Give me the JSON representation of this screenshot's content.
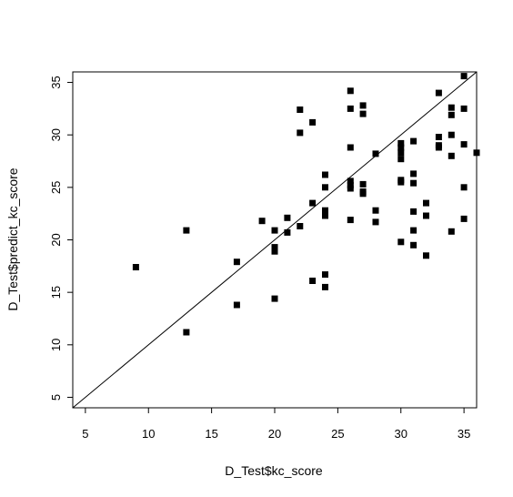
{
  "chart_data": {
    "type": "scatter",
    "title": "",
    "xlabel": "D_Test$kc_score",
    "ylabel": "D_Test$predict_kc_score",
    "xlim": [
      4,
      36
    ],
    "ylim": [
      4,
      36
    ],
    "xticks": [
      5,
      10,
      15,
      20,
      25,
      30,
      35
    ],
    "yticks": [
      5,
      10,
      15,
      20,
      25,
      30,
      35
    ],
    "reference_line": {
      "slope": 1,
      "intercept": 0
    },
    "grid": false,
    "marker": "filled-square",
    "point_color": "#000000",
    "points": [
      [
        9,
        17.4
      ],
      [
        13,
        20.9
      ],
      [
        13,
        11.2
      ],
      [
        17,
        17.9
      ],
      [
        17,
        13.8
      ],
      [
        19,
        21.8
      ],
      [
        20,
        20.9
      ],
      [
        20,
        19.3
      ],
      [
        20,
        18.9
      ],
      [
        20,
        14.4
      ],
      [
        21,
        22.1
      ],
      [
        21,
        20.7
      ],
      [
        22,
        32.4
      ],
      [
        22,
        30.2
      ],
      [
        22,
        21.3
      ],
      [
        23,
        31.2
      ],
      [
        23,
        23.5
      ],
      [
        23,
        16.1
      ],
      [
        24,
        26.2
      ],
      [
        24,
        25.0
      ],
      [
        24,
        22.8
      ],
      [
        24,
        22.3
      ],
      [
        24,
        16.7
      ],
      [
        24,
        15.5
      ],
      [
        26,
        34.2
      ],
      [
        26,
        32.5
      ],
      [
        26,
        28.8
      ],
      [
        26,
        25.6
      ],
      [
        26,
        25.2
      ],
      [
        26,
        24.9
      ],
      [
        26,
        21.9
      ],
      [
        27,
        32.8
      ],
      [
        27,
        32.0
      ],
      [
        27,
        25.3
      ],
      [
        27,
        24.6
      ],
      [
        27,
        24.4
      ],
      [
        28,
        28.2
      ],
      [
        28,
        22.8
      ],
      [
        28,
        21.7
      ],
      [
        30,
        29.2
      ],
      [
        30,
        28.8
      ],
      [
        30,
        28.3
      ],
      [
        30,
        27.7
      ],
      [
        30,
        25.7
      ],
      [
        30,
        25.5
      ],
      [
        30,
        19.8
      ],
      [
        31,
        29.4
      ],
      [
        31,
        26.3
      ],
      [
        31,
        25.4
      ],
      [
        31,
        22.7
      ],
      [
        31,
        20.9
      ],
      [
        31,
        19.5
      ],
      [
        32,
        23.5
      ],
      [
        32,
        22.3
      ],
      [
        32,
        18.5
      ],
      [
        33,
        34.0
      ],
      [
        33,
        29.8
      ],
      [
        33,
        29.0
      ],
      [
        33,
        28.8
      ],
      [
        34,
        32.6
      ],
      [
        34,
        31.9
      ],
      [
        34,
        30.0
      ],
      [
        34,
        28.0
      ],
      [
        34,
        20.8
      ],
      [
        35,
        35.6
      ],
      [
        35,
        32.5
      ],
      [
        35,
        29.1
      ],
      [
        35,
        25.0
      ],
      [
        35,
        22.0
      ],
      [
        36,
        28.3
      ]
    ]
  }
}
